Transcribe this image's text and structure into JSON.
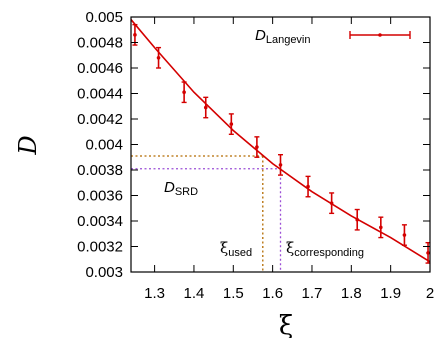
{
  "chart_data": {
    "type": "scatter",
    "xlabel": "ξ",
    "ylabel": "D",
    "xlim": [
      1.24,
      2.0
    ],
    "ylim": [
      0.003,
      0.005
    ],
    "x_ticks": [
      "1.3",
      "1.4",
      "1.5",
      "1.6",
      "1.7",
      "1.8",
      "1.9",
      "2"
    ],
    "x_tick_values": [
      1.3,
      1.4,
      1.5,
      1.6,
      1.7,
      1.8,
      1.9,
      2.0
    ],
    "y_ticks": [
      "0.003",
      "0.0032",
      "0.0034",
      "0.0036",
      "0.0038",
      "0.004",
      "0.0042",
      "0.0044",
      "0.0046",
      "0.0048",
      "0.005"
    ],
    "y_tick_values": [
      0.003,
      0.0032,
      0.0034,
      0.0036,
      0.0038,
      0.004,
      0.0042,
      0.0044,
      0.0046,
      0.0048,
      0.005
    ],
    "grid": false,
    "legend_position": "top-right",
    "series": [
      {
        "name_main": "D",
        "name_sub": "Langevin",
        "color": "#d40000",
        "points": [
          {
            "x": 1.25,
            "y": 0.00486,
            "err": 8e-05
          },
          {
            "x": 1.31,
            "y": 0.00468,
            "err": 8e-05
          },
          {
            "x": 1.375,
            "y": 0.00441,
            "err": 8e-05
          },
          {
            "x": 1.43,
            "y": 0.00429,
            "err": 8e-05
          },
          {
            "x": 1.495,
            "y": 0.00416,
            "err": 8e-05
          },
          {
            "x": 1.56,
            "y": 0.00398,
            "err": 8e-05
          },
          {
            "x": 1.62,
            "y": 0.00384,
            "err": 8e-05
          },
          {
            "x": 1.69,
            "y": 0.00367,
            "err": 8e-05
          },
          {
            "x": 1.75,
            "y": 0.00354,
            "err": 8e-05
          },
          {
            "x": 1.815,
            "y": 0.00341,
            "err": 8e-05
          },
          {
            "x": 1.875,
            "y": 0.00335,
            "err": 8e-05
          },
          {
            "x": 1.935,
            "y": 0.00329,
            "err": 8e-05
          },
          {
            "x": 1.995,
            "y": 0.00315,
            "err": 8e-05
          }
        ],
        "fit_curve": [
          {
            "x": 1.24,
            "y": 0.00498
          },
          {
            "x": 1.3,
            "y": 0.00476
          },
          {
            "x": 1.4,
            "y": 0.00441
          },
          {
            "x": 1.5,
            "y": 0.00411
          },
          {
            "x": 1.6,
            "y": 0.00385
          },
          {
            "x": 1.7,
            "y": 0.00363
          },
          {
            "x": 1.8,
            "y": 0.00344
          },
          {
            "x": 1.9,
            "y": 0.00327
          },
          {
            "x": 2.0,
            "y": 0.00308
          }
        ]
      }
    ],
    "annotations": {
      "d_srd": {
        "main": "D",
        "sub": "SRD",
        "y": 0.00381,
        "x_end": 1.62
      },
      "y_used": 0.00391,
      "xi_used": {
        "main": "ξ",
        "sub": "used",
        "x": 1.575
      },
      "xi_corresponding": {
        "main": "ξ",
        "sub": "corresponding",
        "x": 1.62
      }
    },
    "colors": {
      "data": "#d40000",
      "guide_orange": "#b36b00",
      "guide_purple": "#9b4fd6"
    }
  }
}
